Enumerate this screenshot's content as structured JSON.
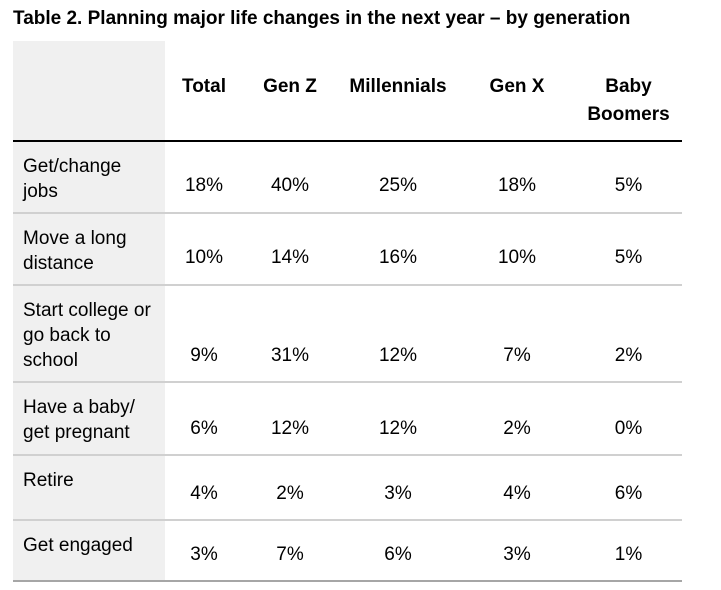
{
  "title": "Table 2. Planning major life changes in the next year – by generation",
  "table": {
    "columns": [
      "Total",
      "Gen Z",
      "Millennials",
      "Gen X",
      "Baby Boomers"
    ],
    "rows": [
      {
        "label": "Get/change jobs",
        "values": [
          "18%",
          "40%",
          "25%",
          "18%",
          "5%"
        ]
      },
      {
        "label": "Move a long distance",
        "values": [
          "10%",
          "14%",
          "16%",
          "10%",
          "5%"
        ]
      },
      {
        "label": "Start college or go back to school",
        "values": [
          "9%",
          "31%",
          "12%",
          "7%",
          "2%"
        ]
      },
      {
        "label": "Have a baby/ get pregnant",
        "values": [
          "6%",
          "12%",
          "12%",
          "2%",
          "0%"
        ]
      },
      {
        "label": "Retire",
        "values": [
          "4%",
          "2%",
          "3%",
          "4%",
          "6%"
        ]
      },
      {
        "label": "Get engaged",
        "values": [
          "3%",
          "7%",
          "6%",
          "3%",
          "1%"
        ]
      }
    ]
  },
  "chart_data": {
    "type": "table",
    "title": "Table 2. Planning major life changes in the next year – by generation",
    "columns": [
      "Total",
      "Gen Z",
      "Millennials",
      "Gen X",
      "Baby Boomers"
    ],
    "row_labels": [
      "Get/change jobs",
      "Move a long distance",
      "Start college or go back to school",
      "Have a baby/ get pregnant",
      "Retire",
      "Get engaged"
    ],
    "values_percent": [
      [
        18,
        40,
        25,
        18,
        5
      ],
      [
        10,
        14,
        16,
        10,
        5
      ],
      [
        9,
        31,
        12,
        7,
        2
      ],
      [
        6,
        12,
        12,
        2,
        0
      ],
      [
        4,
        2,
        3,
        4,
        6
      ],
      [
        3,
        7,
        6,
        3,
        1
      ]
    ]
  },
  "colors": {
    "label_cell_bg": "#f0f0f0",
    "header_rule": "#000000",
    "row_divider": "#d0d0d0",
    "bottom_rule": "#a6a6a6",
    "text": "#000000",
    "page_bg": "#ffffff"
  }
}
